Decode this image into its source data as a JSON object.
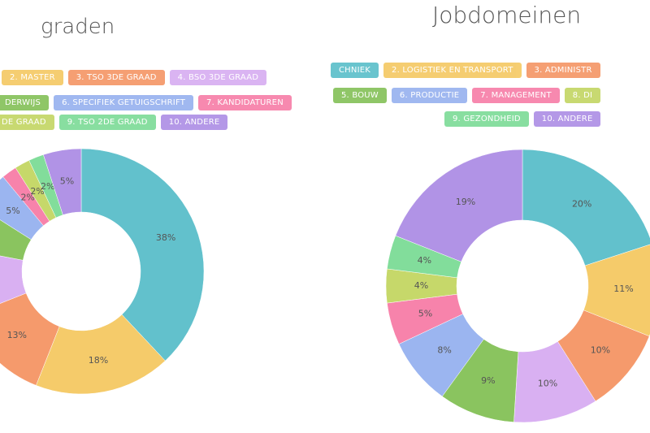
{
  "colors": [
    "#62c1cc",
    "#f5cb6a",
    "#f59a6c",
    "#d9b0f2",
    "#8ac45f",
    "#9bb5f0",
    "#f783ab",
    "#c6d86a",
    "#82dd9b",
    "#b193e6"
  ],
  "chart_data": [
    {
      "type": "pie",
      "title": "graden",
      "hole": 0.48,
      "legend": {
        "rows": [
          [
            "2. MASTER",
            "3. TSO 3DE GRAAD",
            "4. BSO 3DE GRAAD"
          ],
          [
            "DERWIJS",
            "6. SPECIFIEK GETUIGSCHRIFT",
            "7. KANDIDATUREN"
          ],
          [
            "DE GRAAD",
            "9. TSO 2DE GRAAD",
            "10. ANDERE"
          ]
        ],
        "color_index": [
          [
            1,
            2,
            3
          ],
          [
            4,
            5,
            6
          ],
          [
            7,
            8,
            9
          ]
        ]
      },
      "values": [
        38,
        18,
        13,
        9,
        6,
        5,
        2,
        2,
        2,
        5
      ],
      "labels": [
        "38%",
        "18%",
        "13%",
        "",
        "",
        "5%",
        "2%",
        "2%",
        "2%",
        "5%"
      ]
    },
    {
      "type": "pie",
      "title": "Jobdomeinen",
      "hole": 0.48,
      "legend": {
        "rows": [
          [
            "CHNIEK",
            "2. LOGISTIEK EN TRANSPORT",
            "3. ADMINISTR"
          ],
          [
            "5. BOUW",
            "6. PRODUCTIE",
            "7. MANAGEMENT",
            "8. DI"
          ],
          [
            "9. GEZONDHEID",
            "10. ANDERE"
          ]
        ],
        "color_index": [
          [
            0,
            1,
            2
          ],
          [
            4,
            5,
            6,
            7
          ],
          [
            8,
            9
          ]
        ]
      },
      "values": [
        20,
        11,
        10,
        10,
        9,
        8,
        5,
        4,
        4,
        19
      ],
      "labels": [
        "20%",
        "11%",
        "10%",
        "10%",
        "9%",
        "8%",
        "5%",
        "4%",
        "4%",
        "19%"
      ]
    }
  ]
}
